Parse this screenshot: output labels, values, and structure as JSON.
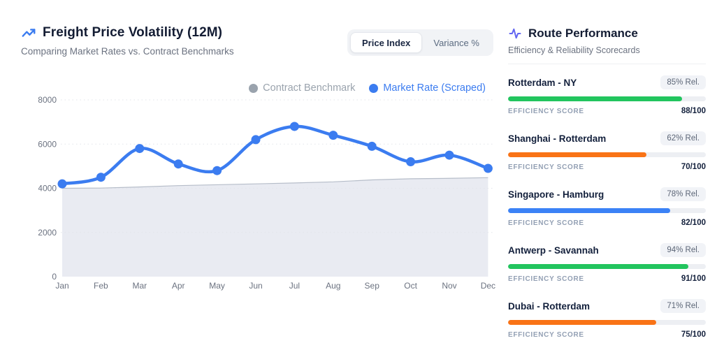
{
  "header": {
    "title": "Freight Price Volatility (12M)",
    "subtitle": "Comparing Market Rates vs. Contract Benchmarks"
  },
  "tabs": {
    "price_index_label": "Price Index",
    "variance_label": "Variance %",
    "active": "Price Index"
  },
  "legend": [
    {
      "label": "Contract Benchmark",
      "color": "#9aa3ad"
    },
    {
      "label": "Market Rate (Scraped)",
      "color": "#3b7cf0"
    }
  ],
  "chart_data": {
    "type": "line",
    "x": [
      "Jan",
      "Feb",
      "Mar",
      "Apr",
      "May",
      "Jun",
      "Jul",
      "Aug",
      "Sep",
      "Oct",
      "Nov",
      "Dec"
    ],
    "series": [
      {
        "name": "Contract Benchmark",
        "style": "area",
        "line_color": "#b6bdc9",
        "fill_color": "#e9ebf2",
        "values": [
          4000,
          4010,
          4060,
          4120,
          4160,
          4200,
          4240,
          4290,
          4380,
          4430,
          4450,
          4480
        ]
      },
      {
        "name": "Market Rate (Scraped)",
        "style": "line-markers",
        "line_color": "#3b7cf0",
        "values": [
          4200,
          4500,
          5800,
          5100,
          4800,
          6200,
          6800,
          6400,
          5900,
          5200,
          5500,
          4900
        ]
      }
    ],
    "ylim": [
      0,
      8000
    ],
    "yticks": [
      0,
      2000,
      4000,
      6000,
      8000
    ],
    "grid": "dotted-horizontal",
    "legend_position": "top-right"
  },
  "routes": {
    "title": "Route Performance",
    "subtitle": "Efficiency & Reliability Scorecards",
    "score_label": "EFFICIENCY SCORE",
    "items": [
      {
        "name": "Rotterdam - NY",
        "reliability": "85% Rel.",
        "score": "88/100",
        "score_pct": 88,
        "bar_color": "#22c55e"
      },
      {
        "name": "Shanghai - Rotterdam",
        "reliability": "62% Rel.",
        "score": "70/100",
        "score_pct": 70,
        "bar_color": "#f97316"
      },
      {
        "name": "Singapore - Hamburg",
        "reliability": "78% Rel.",
        "score": "82/100",
        "score_pct": 82,
        "bar_color": "#3b82f6"
      },
      {
        "name": "Antwerp - Savannah",
        "reliability": "94% Rel.",
        "score": "91/100",
        "score_pct": 91,
        "bar_color": "#22c55e"
      },
      {
        "name": "Dubai - Rotterdam",
        "reliability": "71% Rel.",
        "score": "75/100",
        "score_pct": 75,
        "bar_color": "#f97316"
      }
    ]
  },
  "colors": {
    "accent_blue": "#3b7cf0",
    "title_navy": "#131c33",
    "muted_gray": "#6b7280",
    "area_fill": "#e9ebf2",
    "grid_line": "#e2e5ea",
    "indigo_icon": "#6366f1"
  }
}
